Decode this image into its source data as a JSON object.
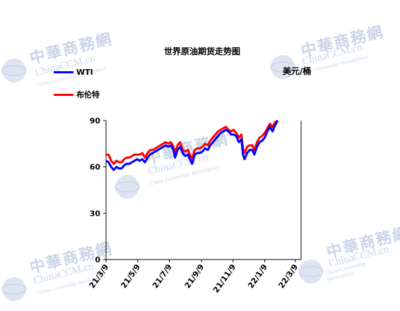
{
  "watermark": {
    "title": "中華商務網",
    "sub1": "ChinaCCM.cn",
    "sub2": "China Commodity Marketplace"
  },
  "chart_data": {
    "type": "line",
    "title": "世界原油期货走势图",
    "ylabel": "美元/桶",
    "ylim": [
      0,
      90
    ],
    "yticks": [
      0,
      30,
      60,
      90
    ],
    "xlim": [
      "2021-03-09",
      "2022-03-20"
    ],
    "xticks": [
      "21/3/9",
      "21/5/9",
      "21/7/9",
      "21/9/9",
      "21/11/9",
      "22/1/9",
      "22/3/9"
    ],
    "legend_position": "top-left",
    "colors": {
      "WTI": "#0000ff",
      "布伦特": "#ff0000"
    },
    "series": [
      {
        "name": "WTI",
        "points": [
          [
            "2021-03-09",
            64
          ],
          [
            "2021-03-14",
            63
          ],
          [
            "2021-03-19",
            60
          ],
          [
            "2021-03-24",
            58
          ],
          [
            "2021-03-29",
            60
          ],
          [
            "2021-04-03",
            59
          ],
          [
            "2021-04-08",
            59
          ],
          [
            "2021-04-13",
            61
          ],
          [
            "2021-04-18",
            62
          ],
          [
            "2021-04-23",
            62
          ],
          [
            "2021-04-28",
            63
          ],
          [
            "2021-05-03",
            64
          ],
          [
            "2021-05-08",
            65
          ],
          [
            "2021-05-13",
            64
          ],
          [
            "2021-05-18",
            65
          ],
          [
            "2021-05-23",
            63
          ],
          [
            "2021-05-28",
            66
          ],
          [
            "2021-06-02",
            68
          ],
          [
            "2021-06-07",
            69
          ],
          [
            "2021-06-12",
            70
          ],
          [
            "2021-06-17",
            71
          ],
          [
            "2021-06-22",
            72
          ],
          [
            "2021-06-27",
            73
          ],
          [
            "2021-07-02",
            74
          ],
          [
            "2021-07-07",
            73
          ],
          [
            "2021-07-12",
            74
          ],
          [
            "2021-07-17",
            71
          ],
          [
            "2021-07-20",
            66
          ],
          [
            "2021-07-25",
            71
          ],
          [
            "2021-07-30",
            73
          ],
          [
            "2021-08-04",
            69
          ],
          [
            "2021-08-09",
            67
          ],
          [
            "2021-08-14",
            68
          ],
          [
            "2021-08-19",
            64
          ],
          [
            "2021-08-22",
            62
          ],
          [
            "2021-08-27",
            68
          ],
          [
            "2021-09-01",
            69
          ],
          [
            "2021-09-06",
            69
          ],
          [
            "2021-09-11",
            70
          ],
          [
            "2021-09-16",
            72
          ],
          [
            "2021-09-21",
            71
          ],
          [
            "2021-09-26",
            74
          ],
          [
            "2021-10-01",
            76
          ],
          [
            "2021-10-06",
            78
          ],
          [
            "2021-10-11",
            80
          ],
          [
            "2021-10-16",
            82
          ],
          [
            "2021-10-21",
            83
          ],
          [
            "2021-10-26",
            84
          ],
          [
            "2021-10-31",
            83
          ],
          [
            "2021-11-05",
            81
          ],
          [
            "2021-11-10",
            81
          ],
          [
            "2021-11-15",
            80
          ],
          [
            "2021-11-20",
            76
          ],
          [
            "2021-11-25",
            78
          ],
          [
            "2021-11-28",
            68
          ],
          [
            "2021-12-01",
            65
          ],
          [
            "2021-12-06",
            69
          ],
          [
            "2021-12-11",
            71
          ],
          [
            "2021-12-16",
            71
          ],
          [
            "2021-12-20",
            68
          ],
          [
            "2021-12-25",
            73
          ],
          [
            "2021-12-30",
            76
          ],
          [
            "2022-01-04",
            77
          ],
          [
            "2022-01-09",
            79
          ],
          [
            "2022-01-14",
            83
          ],
          [
            "2022-01-19",
            86
          ],
          [
            "2022-01-24",
            83
          ],
          [
            "2022-01-29",
            87
          ],
          [
            "2022-02-03",
            90
          ]
        ]
      },
      {
        "name": "布伦特",
        "points": [
          [
            "2021-03-09",
            68
          ],
          [
            "2021-03-14",
            68
          ],
          [
            "2021-03-19",
            64
          ],
          [
            "2021-03-24",
            62
          ],
          [
            "2021-03-29",
            64
          ],
          [
            "2021-04-03",
            63
          ],
          [
            "2021-04-08",
            63
          ],
          [
            "2021-04-13",
            65
          ],
          [
            "2021-04-18",
            66
          ],
          [
            "2021-04-23",
            66
          ],
          [
            "2021-04-28",
            67
          ],
          [
            "2021-05-03",
            68
          ],
          [
            "2021-05-08",
            68
          ],
          [
            "2021-05-13",
            68
          ],
          [
            "2021-05-18",
            69
          ],
          [
            "2021-05-23",
            66
          ],
          [
            "2021-05-28",
            69
          ],
          [
            "2021-06-02",
            71
          ],
          [
            "2021-06-07",
            71
          ],
          [
            "2021-06-12",
            72
          ],
          [
            "2021-06-17",
            73
          ],
          [
            "2021-06-22",
            74
          ],
          [
            "2021-06-27",
            75
          ],
          [
            "2021-07-02",
            76
          ],
          [
            "2021-07-07",
            75
          ],
          [
            "2021-07-12",
            76
          ],
          [
            "2021-07-17",
            73
          ],
          [
            "2021-07-20",
            69
          ],
          [
            "2021-07-25",
            74
          ],
          [
            "2021-07-30",
            76
          ],
          [
            "2021-08-04",
            71
          ],
          [
            "2021-08-09",
            70
          ],
          [
            "2021-08-14",
            71
          ],
          [
            "2021-08-19",
            67
          ],
          [
            "2021-08-22",
            65
          ],
          [
            "2021-08-27",
            71
          ],
          [
            "2021-09-01",
            72
          ],
          [
            "2021-09-06",
            72
          ],
          [
            "2021-09-11",
            73
          ],
          [
            "2021-09-16",
            75
          ],
          [
            "2021-09-21",
            74
          ],
          [
            "2021-09-26",
            77
          ],
          [
            "2021-10-01",
            79
          ],
          [
            "2021-10-06",
            81
          ],
          [
            "2021-10-11",
            83
          ],
          [
            "2021-10-16",
            84
          ],
          [
            "2021-10-21",
            85
          ],
          [
            "2021-10-26",
            86
          ],
          [
            "2021-10-31",
            84
          ],
          [
            "2021-11-05",
            83
          ],
          [
            "2021-11-10",
            84
          ],
          [
            "2021-11-15",
            82
          ],
          [
            "2021-11-20",
            79
          ],
          [
            "2021-11-25",
            81
          ],
          [
            "2021-11-28",
            72
          ],
          [
            "2021-12-01",
            69
          ],
          [
            "2021-12-06",
            73
          ],
          [
            "2021-12-11",
            74
          ],
          [
            "2021-12-16",
            74
          ],
          [
            "2021-12-20",
            71
          ],
          [
            "2021-12-25",
            76
          ],
          [
            "2021-12-30",
            79
          ],
          [
            "2022-01-04",
            80
          ],
          [
            "2022-01-09",
            82
          ],
          [
            "2022-01-14",
            85
          ],
          [
            "2022-01-19",
            88
          ],
          [
            "2022-01-24",
            86
          ],
          [
            "2022-01-29",
            89
          ],
          [
            "2022-02-03",
            90
          ]
        ]
      }
    ]
  }
}
